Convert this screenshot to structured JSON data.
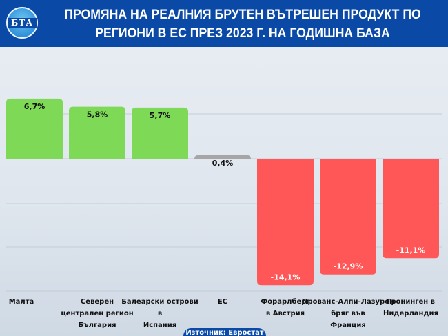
{
  "header": {
    "logo_text": "БТА",
    "title": "ПРОМЯНА НА РЕАЛНИЯ БРУТЕН ВЪТРЕШЕН ПРОДУКТ ПО РЕГИОНИ В ЕС ПРЕЗ 2023 Г. НА ГОДИШНА БАЗА"
  },
  "source": "Източник: Евростат",
  "chart_data": {
    "type": "bar",
    "title": "ПРОМЯНА НА РЕАЛНИЯ БРУТЕН ВЪТРЕШЕН ПРОДУКТ ПО РЕГИОНИ В ЕС ПРЕЗ 2023 Г. НА ГОДИШНА БАЗА",
    "categories": [
      [
        "Малта"
      ],
      [
        "Северен",
        "централен регион",
        "България"
      ],
      [
        "Балеарски острови",
        "в",
        "Испания"
      ],
      [
        "ЕС"
      ],
      [
        "Форарлберг",
        "в Австрия"
      ],
      [
        "Прованс-Алпи-Лазурен",
        "бряг във",
        "Франция"
      ],
      [
        "Гронинген в",
        "Нидерландия"
      ]
    ],
    "values": [
      6.7,
      5.8,
      5.7,
      0.4,
      -14.1,
      -12.9,
      -11.1
    ],
    "labels": [
      "6,7%",
      "5,8%",
      "5,7%",
      "0,4%",
      "-14,1%",
      "-12,9%",
      "-11,1%"
    ],
    "colors": {
      "positive": "#7ed957",
      "eu": "#a6a6a6",
      "negative": "#ff5757"
    },
    "grid": true
  }
}
